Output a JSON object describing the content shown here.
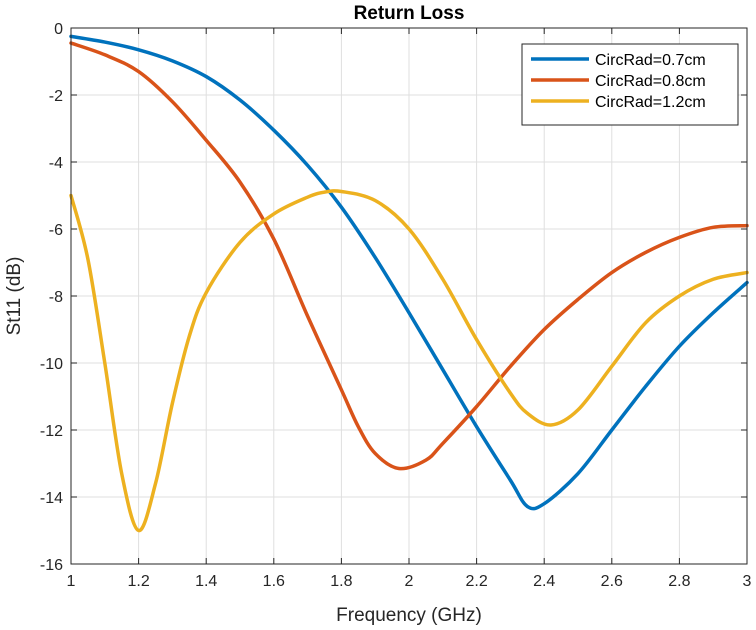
{
  "chart_data": {
    "type": "line",
    "title": "Return Loss",
    "xlabel": "Frequency (GHz)",
    "ylabel": "St11 (dB)",
    "xlim": [
      1,
      3
    ],
    "ylim": [
      -16,
      0
    ],
    "xticks": [
      1,
      1.2,
      1.4,
      1.6,
      1.8,
      2,
      2.2,
      2.4,
      2.6,
      2.8,
      3
    ],
    "xtick_labels": [
      "1",
      "1.2",
      "1.4",
      "1.6",
      "1.8",
      "2",
      "2.2",
      "2.4",
      "2.6",
      "2.8",
      "3"
    ],
    "yticks": [
      0,
      -2,
      -4,
      -6,
      -8,
      -10,
      -12,
      -14,
      -16
    ],
    "ytick_labels": [
      "0",
      "-2",
      "-4",
      "-6",
      "-8",
      "-10",
      "-12",
      "-14",
      "-16"
    ],
    "grid": true,
    "legend_position": "top-right",
    "series": [
      {
        "name": "CircRad=0.7cm",
        "color": "#0072BD",
        "x": [
          1.0,
          1.1,
          1.2,
          1.3,
          1.4,
          1.5,
          1.6,
          1.7,
          1.8,
          1.9,
          2.0,
          2.1,
          2.2,
          2.3,
          2.35,
          2.4,
          2.5,
          2.6,
          2.7,
          2.8,
          2.9,
          3.0
        ],
        "y": [
          -0.25,
          -0.42,
          -0.65,
          -0.98,
          -1.45,
          -2.15,
          -3.05,
          -4.1,
          -5.35,
          -6.85,
          -8.5,
          -10.2,
          -11.9,
          -13.5,
          -14.28,
          -14.2,
          -13.3,
          -12.0,
          -10.7,
          -9.5,
          -8.5,
          -7.6
        ]
      },
      {
        "name": "CircRad=0.8cm",
        "color": "#D95319",
        "x": [
          1.0,
          1.1,
          1.2,
          1.3,
          1.4,
          1.5,
          1.6,
          1.7,
          1.8,
          1.85,
          1.9,
          1.97,
          2.05,
          2.1,
          2.2,
          2.3,
          2.4,
          2.5,
          2.6,
          2.7,
          2.8,
          2.9,
          3.0
        ],
        "y": [
          -0.45,
          -0.8,
          -1.3,
          -2.2,
          -3.35,
          -4.6,
          -6.3,
          -8.6,
          -10.8,
          -11.9,
          -12.7,
          -13.15,
          -12.9,
          -12.4,
          -11.3,
          -10.1,
          -9.0,
          -8.1,
          -7.3,
          -6.7,
          -6.25,
          -5.95,
          -5.9
        ]
      },
      {
        "name": "CircRad=1.2cm",
        "color": "#EDB120",
        "x": [
          1.0,
          1.05,
          1.1,
          1.15,
          1.2,
          1.25,
          1.3,
          1.35,
          1.4,
          1.5,
          1.6,
          1.7,
          1.75,
          1.8,
          1.9,
          2.0,
          2.1,
          2.2,
          2.3,
          2.35,
          2.42,
          2.5,
          2.6,
          2.7,
          2.8,
          2.9,
          3.0
        ],
        "y": [
          -5.0,
          -6.9,
          -10.0,
          -13.3,
          -15.0,
          -13.6,
          -11.2,
          -9.2,
          -7.9,
          -6.4,
          -5.55,
          -5.05,
          -4.9,
          -4.88,
          -5.15,
          -6.0,
          -7.5,
          -9.3,
          -10.9,
          -11.5,
          -11.85,
          -11.4,
          -10.1,
          -8.8,
          -8.0,
          -7.5,
          -7.3
        ]
      }
    ]
  }
}
